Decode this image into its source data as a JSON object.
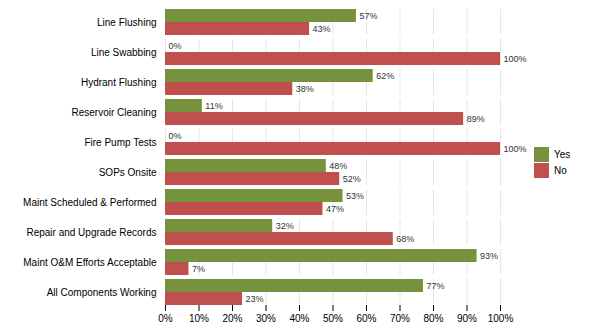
{
  "chart_data": {
    "type": "bar",
    "orientation": "horizontal",
    "categories": [
      "All Components Working",
      "Maint O&M Efforts Acceptable",
      "Repair and Upgrade Records",
      "Maint Scheduled & Performed",
      "SOPs Onsite",
      "Fire Pump Tests",
      "Reservoir Cleaning",
      "Hydrant Flushing",
      "Line Swabbing",
      "Line Flushing"
    ],
    "series": [
      {
        "name": "Yes",
        "color": "#76923C",
        "values": [
          77,
          93,
          32,
          53,
          48,
          0,
          11,
          62,
          0,
          57
        ],
        "value_labels": [
          "77%",
          "93%",
          "32%",
          "53%",
          "48%",
          "0%",
          "11%",
          "62%",
          "0%",
          "57%"
        ]
      },
      {
        "name": "No",
        "color": "#C0504D",
        "values": [
          23,
          7,
          68,
          47,
          52,
          100,
          89,
          38,
          100,
          43
        ],
        "value_labels": [
          "23%",
          "7%",
          "68%",
          "47%",
          "52%",
          "100%",
          "89%",
          "38%",
          "100%",
          "43%"
        ]
      }
    ],
    "xlim": [
      0,
      100
    ],
    "xticks": [
      {
        "value": 0,
        "label": "0%"
      },
      {
        "value": 10,
        "label": "10%"
      },
      {
        "value": 20,
        "label": "20%"
      },
      {
        "value": 30,
        "label": "30%"
      },
      {
        "value": 40,
        "label": "40%"
      },
      {
        "value": 50,
        "label": "50%"
      },
      {
        "value": 60,
        "label": "60%"
      },
      {
        "value": 70,
        "label": "70%"
      },
      {
        "value": 80,
        "label": "80%"
      },
      {
        "value": 90,
        "label": "90%"
      },
      {
        "value": 100,
        "label": "100%"
      }
    ],
    "grid": true,
    "legend": "right",
    "data_labels": true
  }
}
